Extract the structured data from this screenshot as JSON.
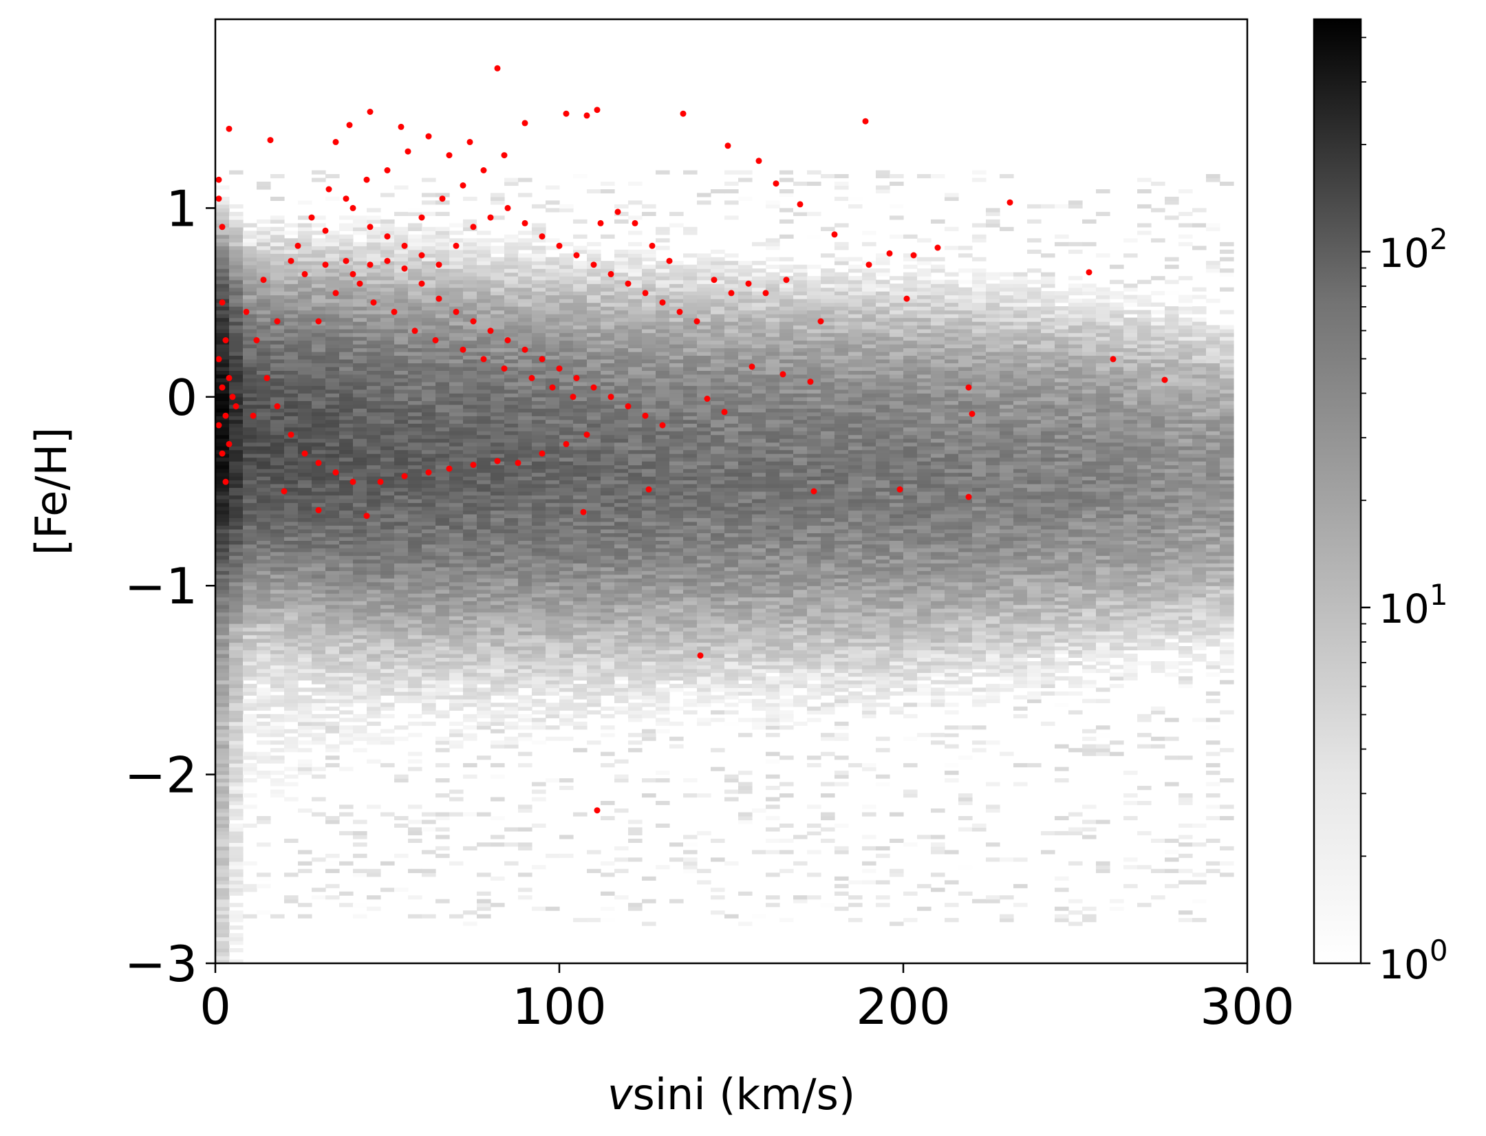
{
  "chart_data": {
    "type": "heatmap",
    "title": "",
    "xlabel_italic": "v",
    "xlabel_rest": "sini (km/s)",
    "ylabel": "[Fe/H]",
    "xlim": [
      0,
      300
    ],
    "ylim": [
      -3,
      2
    ],
    "x_ticks": [
      0,
      100,
      200,
      300
    ],
    "x_tick_labels": [
      "0",
      "100",
      "200",
      "300"
    ],
    "y_ticks": [
      -3,
      -2,
      -1,
      0,
      1
    ],
    "y_tick_labels": [
      "−3",
      "−2",
      "−1",
      "0",
      "1"
    ],
    "colorbar": {
      "scale": "log",
      "range": [
        1,
        450
      ],
      "cmap": "Greys",
      "major_ticks": [
        1,
        10,
        100
      ],
      "tick_base": "10",
      "tick_exponents": [
        "0",
        "1",
        "2"
      ],
      "minor_ticks": [
        2,
        3,
        4,
        5,
        6,
        7,
        8,
        9,
        20,
        30,
        40,
        50,
        60,
        70,
        80,
        90,
        200,
        300,
        400
      ]
    },
    "density": {
      "description_x_range": [
        0,
        295
      ],
      "ridge": [
        {
          "x": 0,
          "y": -0.1,
          "sigma": 0.35,
          "peak": 450
        },
        {
          "x": 10,
          "y": -0.2,
          "sigma": 0.4,
          "peak": 60
        },
        {
          "x": 50,
          "y": -0.3,
          "sigma": 0.45,
          "peak": 40
        },
        {
          "x": 100,
          "y": -0.35,
          "sigma": 0.45,
          "peak": 32
        },
        {
          "x": 150,
          "y": -0.38,
          "sigma": 0.45,
          "peak": 25
        },
        {
          "x": 200,
          "y": -0.4,
          "sigma": 0.45,
          "peak": 22
        },
        {
          "x": 250,
          "y": -0.4,
          "sigma": 0.42,
          "peak": 18
        },
        {
          "x": 295,
          "y": -0.42,
          "sigma": 0.4,
          "peak": 12
        }
      ]
    },
    "scatter": {
      "name": "",
      "color": "#ff0000",
      "points": [
        [
          2,
          0.05
        ],
        [
          3,
          -0.1
        ],
        [
          4,
          0.1
        ],
        [
          2,
          -0.3
        ],
        [
          1,
          0.2
        ],
        [
          5,
          0.0
        ],
        [
          3,
          0.3
        ],
        [
          1,
          -0.15
        ],
        [
          4,
          -0.25
        ],
        [
          2,
          0.5
        ],
        [
          6,
          -0.05
        ],
        [
          1,
          1.15
        ],
        [
          1,
          1.05
        ],
        [
          4,
          1.42
        ],
        [
          2,
          0.9
        ],
        [
          3,
          -0.45
        ],
        [
          16,
          1.36
        ],
        [
          35,
          1.35
        ],
        [
          39,
          1.44
        ],
        [
          45,
          1.51
        ],
        [
          54,
          1.43
        ],
        [
          62,
          1.38
        ],
        [
          82,
          1.74
        ],
        [
          90,
          1.45
        ],
        [
          102,
          1.5
        ],
        [
          108,
          1.49
        ],
        [
          111,
          1.52
        ],
        [
          136,
          1.5
        ],
        [
          149,
          1.33
        ],
        [
          158,
          1.25
        ],
        [
          163,
          1.13
        ],
        [
          170,
          1.02
        ],
        [
          180,
          0.86
        ],
        [
          189,
          1.46
        ],
        [
          196,
          0.76
        ],
        [
          203,
          0.75
        ],
        [
          210,
          0.79
        ],
        [
          190,
          0.7
        ],
        [
          201,
          0.52
        ],
        [
          231,
          1.03
        ],
        [
          254,
          0.66
        ],
        [
          261,
          0.2
        ],
        [
          276,
          0.09
        ],
        [
          219,
          0.05
        ],
        [
          220,
          -0.09
        ],
        [
          219,
          -0.53
        ],
        [
          199,
          -0.49
        ],
        [
          174,
          -0.5
        ],
        [
          173,
          0.08
        ],
        [
          165,
          0.12
        ],
        [
          156,
          0.16
        ],
        [
          148,
          -0.08
        ],
        [
          143,
          -0.01
        ],
        [
          141,
          -1.37
        ],
        [
          111,
          -2.19
        ],
        [
          126,
          -0.49
        ],
        [
          107,
          -0.61
        ],
        [
          44,
          -0.63
        ],
        [
          30,
          -0.6
        ],
        [
          20,
          -0.5
        ],
        [
          11,
          -0.1
        ],
        [
          18,
          0.4
        ],
        [
          24,
          0.8
        ],
        [
          28,
          0.95
        ],
        [
          33,
          1.1
        ],
        [
          40,
          1.0
        ],
        [
          45,
          0.9
        ],
        [
          50,
          0.85
        ],
        [
          55,
          0.8
        ],
        [
          60,
          0.75
        ],
        [
          65,
          0.7
        ],
        [
          70,
          0.8
        ],
        [
          75,
          0.9
        ],
        [
          80,
          0.95
        ],
        [
          85,
          1.0
        ],
        [
          90,
          0.92
        ],
        [
          95,
          0.85
        ],
        [
          100,
          0.8
        ],
        [
          105,
          0.75
        ],
        [
          110,
          0.7
        ],
        [
          115,
          0.65
        ],
        [
          120,
          0.6
        ],
        [
          125,
          0.55
        ],
        [
          130,
          0.5
        ],
        [
          135,
          0.45
        ],
        [
          140,
          0.4
        ],
        [
          145,
          0.62
        ],
        [
          150,
          0.55
        ],
        [
          155,
          0.6
        ],
        [
          160,
          0.55
        ],
        [
          166,
          0.62
        ],
        [
          176,
          0.4
        ],
        [
          132,
          0.72
        ],
        [
          127,
          0.8
        ],
        [
          122,
          0.92
        ],
        [
          117,
          0.98
        ],
        [
          112,
          0.92
        ],
        [
          30,
          0.4
        ],
        [
          35,
          0.55
        ],
        [
          40,
          0.65
        ],
        [
          45,
          0.7
        ],
        [
          50,
          0.72
        ],
        [
          55,
          0.68
        ],
        [
          60,
          0.6
        ],
        [
          65,
          0.52
        ],
        [
          70,
          0.45
        ],
        [
          75,
          0.4
        ],
        [
          80,
          0.35
        ],
        [
          85,
          0.3
        ],
        [
          90,
          0.25
        ],
        [
          95,
          0.2
        ],
        [
          100,
          0.15
        ],
        [
          105,
          0.1
        ],
        [
          110,
          0.05
        ],
        [
          115,
          0.0
        ],
        [
          120,
          -0.05
        ],
        [
          125,
          -0.1
        ],
        [
          130,
          -0.15
        ],
        [
          12,
          0.3
        ],
        [
          15,
          0.1
        ],
        [
          18,
          -0.05
        ],
        [
          22,
          -0.2
        ],
        [
          26,
          -0.3
        ],
        [
          30,
          -0.35
        ],
        [
          35,
          -0.4
        ],
        [
          40,
          -0.45
        ],
        [
          48,
          -0.45
        ],
        [
          55,
          -0.42
        ],
        [
          62,
          -0.4
        ],
        [
          68,
          -0.38
        ],
        [
          75,
          -0.36
        ],
        [
          82,
          -0.34
        ],
        [
          88,
          -0.35
        ],
        [
          95,
          -0.3
        ],
        [
          102,
          -0.25
        ],
        [
          108,
          -0.2
        ],
        [
          26,
          0.65
        ],
        [
          32,
          0.7
        ],
        [
          38,
          0.72
        ],
        [
          42,
          0.6
        ],
        [
          46,
          0.5
        ],
        [
          52,
          0.45
        ],
        [
          58,
          0.35
        ],
        [
          64,
          0.3
        ],
        [
          72,
          0.25
        ],
        [
          78,
          0.2
        ],
        [
          84,
          0.15
        ],
        [
          92,
          0.1
        ],
        [
          98,
          0.05
        ],
        [
          104,
          0.0
        ],
        [
          60,
          0.95
        ],
        [
          66,
          1.05
        ],
        [
          72,
          1.12
        ],
        [
          78,
          1.2
        ],
        [
          84,
          1.28
        ],
        [
          68,
          1.28
        ],
        [
          74,
          1.35
        ],
        [
          56,
          1.3
        ],
        [
          50,
          1.2
        ],
        [
          44,
          1.15
        ],
        [
          38,
          1.05
        ],
        [
          32,
          0.88
        ],
        [
          22,
          0.72
        ],
        [
          14,
          0.62
        ],
        [
          9,
          0.45
        ]
      ]
    }
  }
}
